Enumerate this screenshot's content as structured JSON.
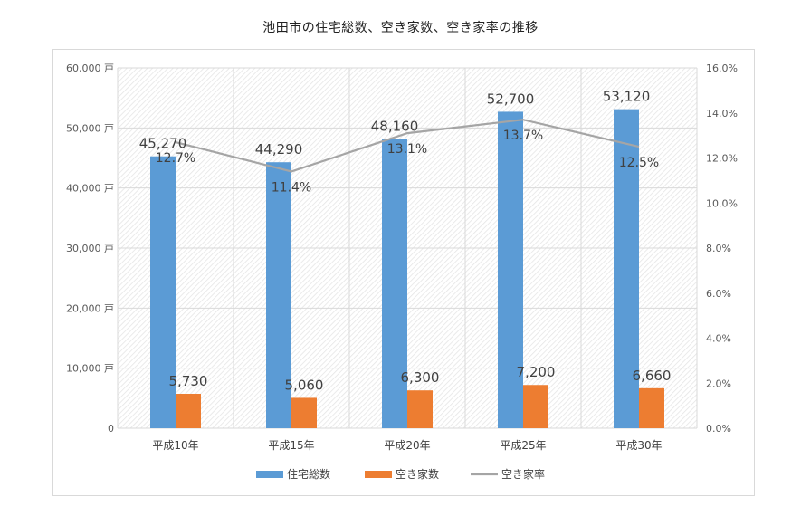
{
  "chart_data": {
    "type": "bar",
    "title": "池田市の住宅総数、空き家数、空き家率の推移",
    "categories": [
      "平成10年",
      "平成15年",
      "平成20年",
      "平成25年",
      "平成30年"
    ],
    "series": [
      {
        "name": "住宅総数",
        "kind": "bar",
        "axis": "left",
        "color": "#5b9bd5",
        "values": [
          45270,
          44290,
          48160,
          52700,
          53120
        ],
        "labels": [
          "45,270",
          "44,290",
          "48,160",
          "52,700",
          "53,120"
        ]
      },
      {
        "name": "空き家数",
        "kind": "bar",
        "axis": "left",
        "color": "#ed7d31",
        "values": [
          5730,
          5060,
          6300,
          7200,
          6660
        ],
        "labels": [
          "5,730",
          "5,060",
          "6,300",
          "7,200",
          "6,660"
        ]
      },
      {
        "name": "空き家率",
        "kind": "line",
        "axis": "right",
        "color": "#a5a5a5",
        "values": [
          12.7,
          11.4,
          13.1,
          13.7,
          12.5
        ],
        "labels": [
          "12.7%",
          "11.4%",
          "13.1%",
          "13.7%",
          "12.5%"
        ]
      }
    ],
    "y_left": {
      "min": 0,
      "max": 60000,
      "ticks": [
        "0",
        "10,000 戸",
        "20,000 戸",
        "30,000 戸",
        "40,000 戸",
        "50,000 戸",
        "60,000 戸"
      ]
    },
    "y_right": {
      "min": 0,
      "max": 16,
      "ticks": [
        "0.0%",
        "2.0%",
        "4.0%",
        "6.0%",
        "8.0%",
        "10.0%",
        "12.0%",
        "14.0%",
        "16.0%"
      ]
    },
    "grid": true,
    "legend": "bottom"
  }
}
